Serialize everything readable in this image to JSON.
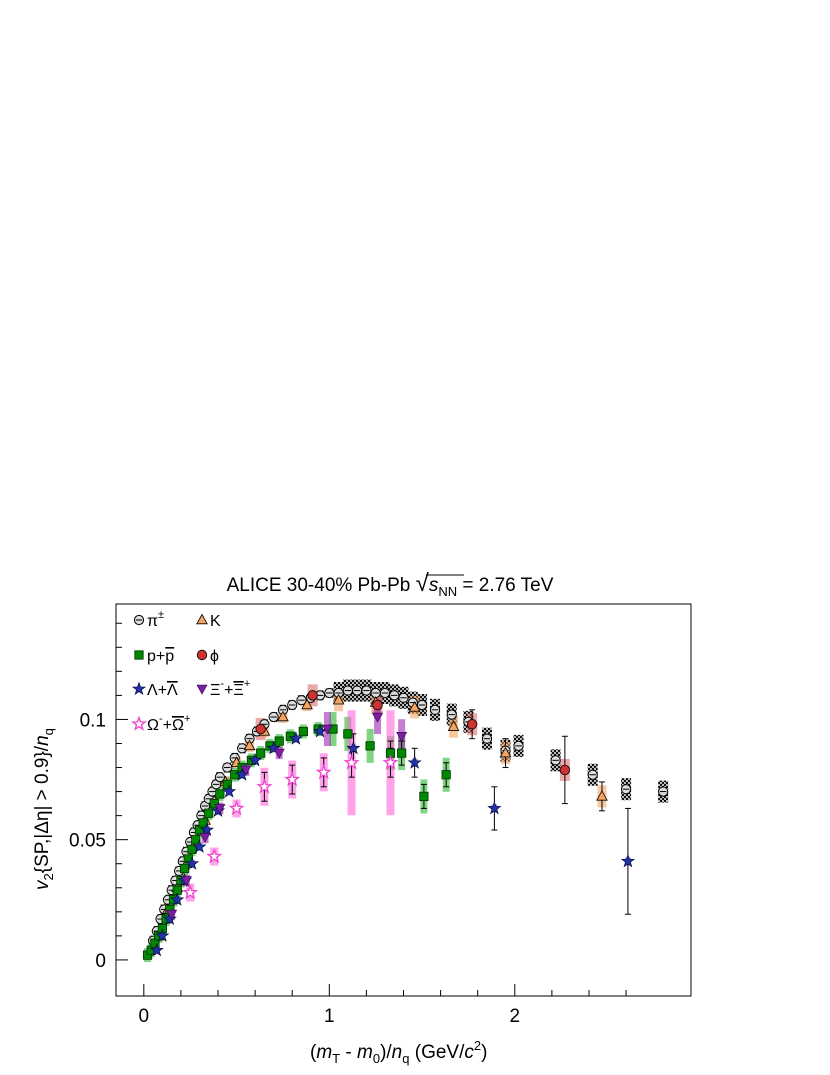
{
  "chart_data": {
    "type": "scatter",
    "title": {
      "prefix": "ALICE 30-40% Pb-Pb ",
      "sqrt_symbol": "√",
      "s_var": "s",
      "s_sub": "NN",
      "suffix": " = 2.76 TeV"
    },
    "xlabel": {
      "open": "(",
      "m1": "m",
      "m1_sub": "T",
      "minus": " - ",
      "m2": "m",
      "m2_sub": "0",
      "close": ")/",
      "n": "n",
      "n_sub": "q",
      "unit_open": " (GeV/",
      "c": "c",
      "c_sup": "2",
      "unit_close": ")"
    },
    "ylabel": {
      "v": "v",
      "v_sub": "2",
      "body": "{SP,|Δη| > 0.9}/",
      "n": "n",
      "n_sub": "q"
    },
    "xlim": [
      -0.15,
      2.95
    ],
    "ylim": [
      -0.015,
      0.148
    ],
    "x_ticks": [
      {
        "v": 0,
        "label": "0"
      },
      {
        "v": 1,
        "label": "1"
      },
      {
        "v": 2,
        "label": "2"
      }
    ],
    "y_ticks": [
      {
        "v": 0,
        "label": "0"
      },
      {
        "v": 0.05,
        "label": "0.05"
      },
      {
        "v": 0.1,
        "label": "0.1"
      }
    ],
    "legend_position": "top-left",
    "series": [
      {
        "name": "π±",
        "label_main": "π",
        "label_sup": "±",
        "label_sub": "",
        "marker": "circle-cross",
        "color": "#000000",
        "sys_color": "#555555",
        "points": [
          [
            0.05,
            0.008
          ],
          [
            0.07,
            0.012
          ],
          [
            0.09,
            0.017
          ],
          [
            0.11,
            0.021
          ],
          [
            0.13,
            0.025
          ],
          [
            0.15,
            0.029
          ],
          [
            0.17,
            0.033
          ],
          [
            0.19,
            0.037
          ],
          [
            0.21,
            0.041
          ],
          [
            0.23,
            0.045
          ],
          [
            0.25,
            0.049
          ],
          [
            0.27,
            0.053
          ],
          [
            0.29,
            0.056
          ],
          [
            0.31,
            0.06
          ],
          [
            0.33,
            0.064
          ],
          [
            0.35,
            0.067
          ],
          [
            0.37,
            0.07
          ],
          [
            0.39,
            0.073
          ],
          [
            0.41,
            0.076
          ],
          [
            0.45,
            0.08
          ],
          [
            0.49,
            0.084
          ],
          [
            0.53,
            0.088
          ],
          [
            0.57,
            0.092
          ],
          [
            0.61,
            0.095
          ],
          [
            0.65,
            0.098
          ],
          [
            0.7,
            0.101
          ],
          [
            0.75,
            0.104
          ],
          [
            0.8,
            0.106
          ],
          [
            0.85,
            0.108
          ],
          [
            0.9,
            0.109
          ],
          [
            0.95,
            0.11
          ],
          [
            1.0,
            0.111
          ],
          [
            1.05,
            0.111
          ],
          [
            1.1,
            0.112
          ],
          [
            1.15,
            0.112
          ],
          [
            1.2,
            0.112
          ],
          [
            1.25,
            0.111
          ],
          [
            1.3,
            0.111
          ],
          [
            1.35,
            0.11
          ],
          [
            1.4,
            0.109
          ],
          [
            1.45,
            0.107
          ],
          [
            1.5,
            0.106
          ],
          [
            1.57,
            0.104
          ],
          [
            1.66,
            0.102
          ],
          [
            1.75,
            0.099
          ],
          [
            1.85,
            0.092
          ],
          [
            1.95,
            0.087
          ],
          [
            2.02,
            0.089
          ],
          [
            2.22,
            0.083
          ],
          [
            2.42,
            0.077
          ],
          [
            2.6,
            0.071
          ],
          [
            2.8,
            0.07
          ]
        ]
      },
      {
        "name": "K",
        "label_main": "K",
        "label_sup": "",
        "label_sub": "",
        "marker": "triangle",
        "color": "#f4a460",
        "sys_color": "#f4a460",
        "points": [
          [
            0.08,
            0.01
          ],
          [
            0.13,
            0.021
          ],
          [
            0.18,
            0.03
          ],
          [
            0.23,
            0.04
          ],
          [
            0.28,
            0.049
          ],
          [
            0.33,
            0.058
          ],
          [
            0.38,
            0.066
          ],
          [
            0.44,
            0.074
          ],
          [
            0.5,
            0.082
          ],
          [
            0.57,
            0.089
          ],
          [
            0.65,
            0.095
          ],
          [
            0.75,
            0.101
          ],
          [
            0.88,
            0.106
          ],
          [
            1.05,
            0.108
          ],
          [
            1.25,
            0.107
          ],
          [
            1.46,
            0.105
          ],
          [
            1.67,
            0.097
          ],
          [
            1.95,
            0.086
          ],
          [
            2.47,
            0.068
          ]
        ]
      },
      {
        "name": "p+p̄",
        "label_main": "p+",
        "label_sup": "",
        "label_sub": "",
        "label_bar": "p",
        "marker": "square",
        "color": "#008800",
        "sys_color": "#2db82d",
        "points": [
          [
            0.02,
            0.002
          ],
          [
            0.04,
            0.004
          ],
          [
            0.06,
            0.007
          ],
          [
            0.08,
            0.01
          ],
          [
            0.1,
            0.013
          ],
          [
            0.12,
            0.017
          ],
          [
            0.14,
            0.021
          ],
          [
            0.16,
            0.025
          ],
          [
            0.18,
            0.029
          ],
          [
            0.2,
            0.033
          ],
          [
            0.22,
            0.038
          ],
          [
            0.24,
            0.042
          ],
          [
            0.26,
            0.046
          ],
          [
            0.28,
            0.05
          ],
          [
            0.3,
            0.054
          ],
          [
            0.32,
            0.057
          ],
          [
            0.35,
            0.061
          ],
          [
            0.38,
            0.065
          ],
          [
            0.41,
            0.069
          ],
          [
            0.45,
            0.073
          ],
          [
            0.49,
            0.077
          ],
          [
            0.53,
            0.08
          ],
          [
            0.58,
            0.083
          ],
          [
            0.63,
            0.086
          ],
          [
            0.68,
            0.089
          ],
          [
            0.73,
            0.091
          ],
          [
            0.79,
            0.093
          ],
          [
            0.86,
            0.095
          ],
          [
            0.94,
            0.096
          ],
          [
            1.02,
            0.096
          ],
          [
            1.1,
            0.094
          ],
          [
            1.22,
            0.089
          ],
          [
            1.33,
            0.086
          ],
          [
            1.39,
            0.086
          ],
          [
            1.51,
            0.068
          ],
          [
            1.63,
            0.077
          ]
        ]
      },
      {
        "name": "ϕ",
        "label_main": "ϕ",
        "label_sup": "",
        "label_sub": "",
        "marker": "circle",
        "color": "#cc3333",
        "sys_color": "#e07070",
        "points": [
          [
            0.63,
            0.096
          ],
          [
            0.91,
            0.11
          ],
          [
            1.26,
            0.106
          ],
          [
            1.77,
            0.098
          ],
          [
            2.27,
            0.079
          ]
        ]
      },
      {
        "name": "Λ+Λ̄",
        "label_main": "Λ+",
        "label_sup": "",
        "label_sub": "",
        "label_bar": "Λ",
        "marker": "star",
        "color": "#2233aa",
        "sys_color": "#5566cc",
        "points": [
          [
            0.07,
            0.004
          ],
          [
            0.1,
            0.01
          ],
          [
            0.14,
            0.017
          ],
          [
            0.18,
            0.025
          ],
          [
            0.22,
            0.033
          ],
          [
            0.26,
            0.04
          ],
          [
            0.3,
            0.047
          ],
          [
            0.34,
            0.054
          ],
          [
            0.4,
            0.062
          ],
          [
            0.46,
            0.07
          ],
          [
            0.53,
            0.077
          ],
          [
            0.6,
            0.083
          ],
          [
            0.7,
            0.088
          ],
          [
            0.82,
            0.092
          ],
          [
            0.95,
            0.095
          ],
          [
            1.13,
            0.088
          ],
          [
            1.46,
            0.082
          ],
          [
            1.89,
            0.063
          ],
          [
            2.61,
            0.041
          ]
        ]
      },
      {
        "name": "Ξ−+Ξ̄+",
        "label_main": "Ξ",
        "label_sup": "-",
        "label_mid": "+",
        "label_bar": "Ξ",
        "label_sup2": "+",
        "marker": "triangle-down",
        "color": "#7b1fa2",
        "sys_color": "#9c27b0",
        "points": [
          [
            0.15,
            0.019
          ],
          [
            0.23,
            0.033
          ],
          [
            0.33,
            0.051
          ],
          [
            0.41,
            0.063
          ],
          [
            0.55,
            0.079
          ],
          [
            0.73,
            0.086
          ],
          [
            0.99,
            0.096
          ],
          [
            1.26,
            0.101
          ],
          [
            1.39,
            0.093
          ]
        ]
      },
      {
        "name": "Ω−+Ω̄+",
        "label_main": "Ω",
        "label_sup": "-",
        "label_mid": "+",
        "label_bar": "Ω",
        "label_sup2": "+",
        "marker": "star-open",
        "color": "#ee44cc",
        "sys_color": "#ff66dd",
        "points": [
          [
            0.25,
            0.028
          ],
          [
            0.38,
            0.043
          ],
          [
            0.5,
            0.063
          ],
          [
            0.65,
            0.072
          ],
          [
            0.8,
            0.075
          ],
          [
            0.97,
            0.078
          ],
          [
            1.12,
            0.082
          ],
          [
            1.33,
            0.082
          ]
        ]
      }
    ]
  }
}
